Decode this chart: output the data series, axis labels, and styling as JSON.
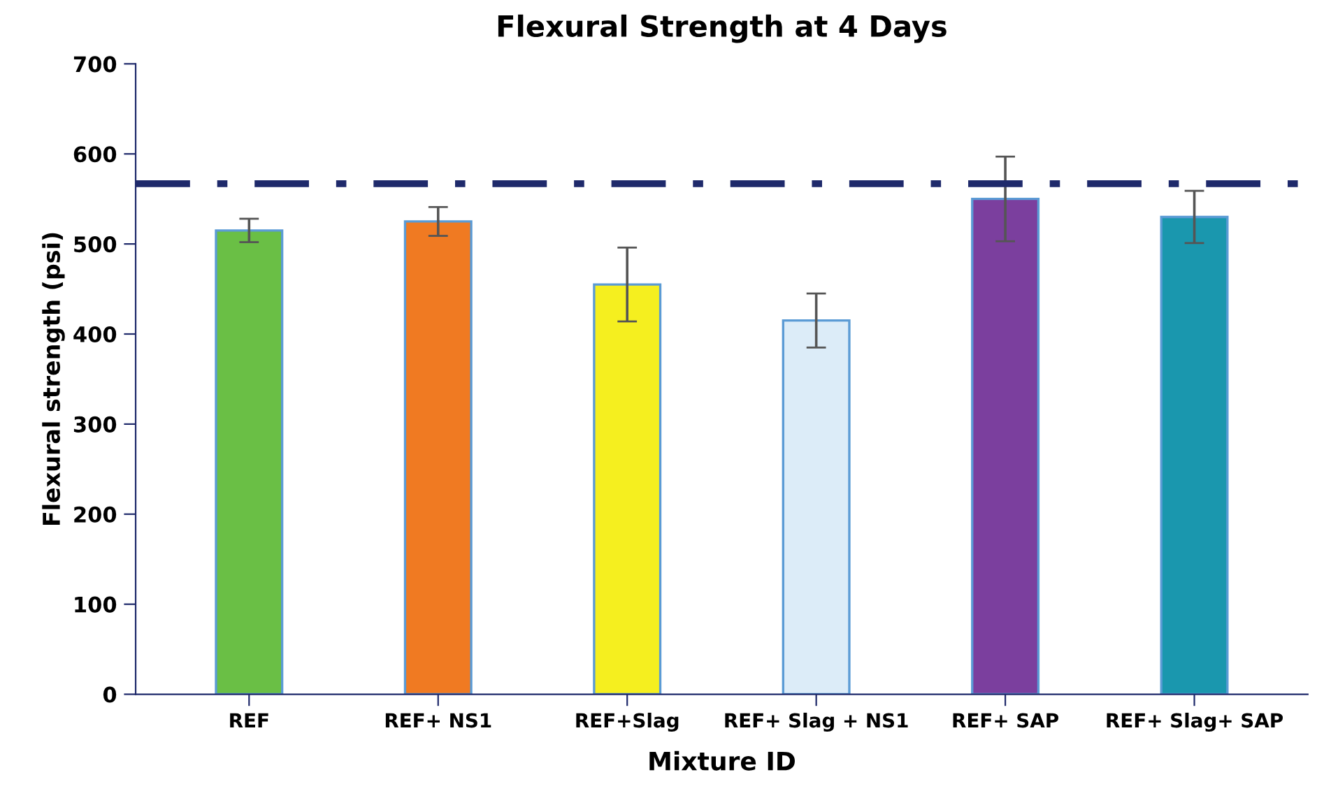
{
  "chart_data": {
    "type": "bar",
    "title": "Flexural Strength at 4 Days",
    "xlabel": "Mixture ID",
    "ylabel": "Flexural strength (psi)",
    "categories": [
      "REF",
      "REF+ NS1",
      "REF+Slag",
      "REF+ Slag + NS1",
      "REF+ SAP",
      "REF+ Slag+ SAP"
    ],
    "values": [
      515,
      525,
      455,
      415,
      550,
      530
    ],
    "errors": [
      13,
      16,
      41,
      30,
      47,
      29
    ],
    "colors": [
      "#6abf45",
      "#f07a22",
      "#f5ef1f",
      "#dcecf8",
      "#7b3f9e",
      "#1a97ae"
    ],
    "ylim": [
      0,
      700
    ],
    "yticks": [
      0,
      100,
      200,
      300,
      400,
      500,
      600,
      700
    ],
    "ref_lines": [
      {
        "axis": "y",
        "value": 567,
        "color": "#1f2a6b",
        "line_style": "dashdot"
      }
    ],
    "grid": false,
    "legend": false
  }
}
